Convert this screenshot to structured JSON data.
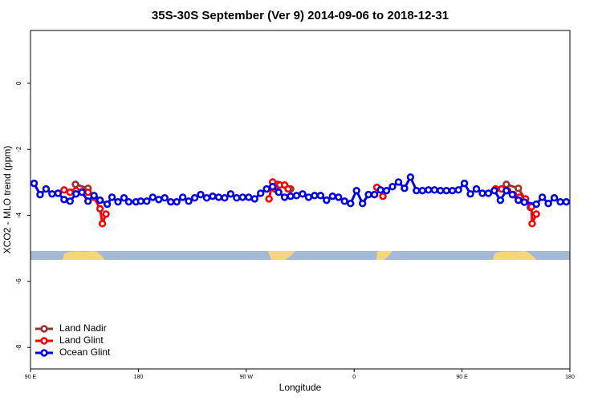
{
  "chart_data": {
    "type": "line",
    "title": "35S-30S September (Ver 9)   2014-09-06 to 2018-12-31",
    "x_label": "Longitude",
    "y_label": "XCO2 - MLO trend (ppm)",
    "xlim": [
      90,
      540
    ],
    "xticks": [
      {
        "value": 90,
        "label": "90 E"
      },
      {
        "value": 180,
        "label": "180"
      },
      {
        "value": 270,
        "label": "90 W"
      },
      {
        "value": 360,
        "label": "0"
      },
      {
        "value": 450,
        "label": "90 E"
      },
      {
        "value": 540,
        "label": "180"
      }
    ],
    "ylim": [
      -8.65,
      1.6
    ],
    "yticks": [
      0,
      -2,
      -4,
      -6,
      -8
    ],
    "legend_position": "bottomleft",
    "series": [
      {
        "name": "Land Nadir",
        "color": "#993333",
        "x": [
          127.5,
          138,
          140,
          296,
          307,
          309,
          487,
          497,
          507
        ],
        "values": [
          -3.06,
          -3.18,
          null,
          -3.06,
          -3.2,
          null,
          -3.06,
          -3.18,
          -3.76
        ]
      },
      {
        "name": "Land Glint",
        "color": "#ff0000",
        "x": [
          118,
          123,
          128,
          133,
          138,
          143,
          148,
          150,
          153,
          155,
          289,
          292,
          294,
          298,
          302,
          305,
          307,
          379,
          384,
          386,
          478,
          483,
          488,
          493,
          498,
          503,
          508,
          508.5,
          512
        ],
        "values": [
          -3.23,
          -3.3,
          -3.25,
          -3.28,
          -3.3,
          -3.45,
          -3.8,
          -4.25,
          -3.96,
          null,
          -3.5,
          -2.99,
          -3.2,
          -3.08,
          -3.08,
          -3.2,
          null,
          -3.15,
          -3.42,
          null,
          -3.2,
          -3.2,
          -3.25,
          -3.37,
          -3.45,
          -3.5,
          -3.74,
          -4.25,
          -3.96
        ]
      },
      {
        "name": "Ocean Glint",
        "color": "#0000ee",
        "x": [
          93,
          98,
          103,
          108,
          113,
          118,
          123,
          128,
          133,
          138,
          143,
          148,
          154,
          158,
          163,
          168,
          172,
          178,
          182,
          187,
          192,
          197,
          202,
          207,
          212,
          217,
          222,
          227,
          232,
          237,
          242,
          247,
          252,
          257,
          262,
          267,
          272,
          277,
          282,
          287,
          292,
          297,
          302,
          307,
          312,
          317,
          322,
          327,
          332,
          337,
          342,
          347,
          352,
          357,
          362,
          367,
          372,
          377,
          382,
          387,
          392,
          397,
          402,
          407,
          412,
          417,
          422,
          427,
          432,
          437,
          442,
          447,
          452,
          457,
          462,
          467,
          472,
          477,
          482,
          487,
          492,
          497,
          502,
          512,
          517,
          522,
          527,
          532,
          537
        ],
        "values": [
          -3.03,
          -3.37,
          -3.2,
          -3.35,
          -3.33,
          -3.52,
          -3.57,
          -3.35,
          -3.3,
          -3.57,
          -3.4,
          -3.54,
          -3.66,
          -3.45,
          -3.59,
          -3.47,
          -3.59,
          -3.59,
          -3.57,
          -3.57,
          -3.45,
          -3.52,
          -3.47,
          -3.59,
          -3.59,
          -3.45,
          -3.57,
          -3.47,
          -3.37,
          -3.47,
          -3.42,
          -3.45,
          -3.47,
          -3.35,
          -3.47,
          -3.45,
          -3.45,
          -3.5,
          -3.33,
          -3.2,
          -3.13,
          -3.3,
          -3.45,
          -3.42,
          -3.4,
          -3.35,
          -3.45,
          -3.4,
          -3.4,
          -3.54,
          -3.42,
          -3.45,
          -3.57,
          -3.64,
          -3.25,
          -3.64,
          -3.37,
          -3.37,
          -3.23,
          -3.25,
          -3.13,
          -2.99,
          -3.18,
          -2.84,
          -3.25,
          -3.25,
          -3.23,
          -3.23,
          -3.25,
          -3.25,
          -3.25,
          -3.23,
          -3.03,
          -3.35,
          -3.2,
          -3.33,
          -3.33,
          -3.25,
          -3.54,
          -3.25,
          -3.37,
          -3.54,
          -3.6,
          -3.66,
          -3.45,
          -3.64,
          -3.47,
          -3.59,
          -3.59
        ]
      }
    ]
  }
}
